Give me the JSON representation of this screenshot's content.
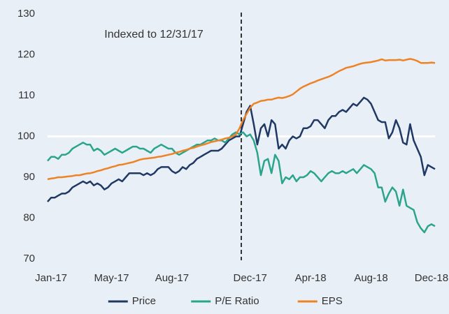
{
  "chart_data": {
    "type": "line",
    "annotation": "Indexed to 12/31/17",
    "categories": [
      null,
      "Jan-17",
      null,
      null,
      null,
      null,
      null,
      null,
      null,
      null,
      null,
      null,
      null,
      null,
      null,
      null,
      null,
      null,
      "May-17",
      null,
      null,
      null,
      null,
      null,
      null,
      null,
      null,
      null,
      null,
      null,
      null,
      null,
      null,
      null,
      null,
      "Aug-17",
      null,
      null,
      null,
      null,
      null,
      null,
      null,
      null,
      null,
      null,
      null,
      null,
      null,
      null,
      null,
      null,
      null,
      null,
      null,
      null,
      null,
      "Dec-17",
      null,
      null,
      null,
      null,
      null,
      null,
      null,
      null,
      null,
      null,
      null,
      null,
      null,
      null,
      null,
      null,
      "Apr-18",
      null,
      null,
      null,
      null,
      null,
      null,
      null,
      null,
      null,
      null,
      null,
      null,
      null,
      null,
      null,
      null,
      "Aug-18",
      null,
      null,
      null,
      null,
      null,
      null,
      null,
      null,
      null,
      null,
      null,
      null,
      null,
      null,
      null,
      null,
      "Dec-18",
      null
    ],
    "series": [
      {
        "name": "Price",
        "color": "#1f3864",
        "values": [
          84,
          85,
          85,
          85.5,
          86,
          86,
          86.5,
          87.5,
          88,
          88.5,
          89,
          88.5,
          89,
          88,
          88.5,
          88,
          87,
          87.5,
          88.5,
          89,
          89.5,
          89,
          90,
          91,
          91,
          91,
          91,
          90.5,
          91,
          90.5,
          91,
          92,
          92.5,
          92.5,
          92.5,
          91.5,
          91,
          91.5,
          92.5,
          92,
          93,
          93.5,
          94.5,
          95,
          95.5,
          96,
          96.5,
          96.5,
          96.5,
          97,
          98,
          99,
          99.5,
          100,
          100,
          103,
          106,
          107.5,
          103,
          98,
          102,
          103,
          100,
          104,
          103,
          97,
          98,
          97,
          99,
          100,
          99.5,
          100,
          102,
          102,
          102.5,
          104,
          104,
          103,
          102,
          104,
          105,
          105,
          106,
          106.5,
          106,
          107,
          108,
          107.5,
          108.5,
          109.5,
          109,
          108,
          106,
          104,
          103.5,
          103.5,
          99.5,
          101,
          104,
          102,
          98.5,
          98,
          103,
          99,
          97,
          95,
          90.5,
          93,
          92.5,
          92
        ]
      },
      {
        "name": "P/E Ratio",
        "color": "#2aa58c",
        "values": [
          94,
          95,
          95,
          94.5,
          95.5,
          95.5,
          96,
          97,
          97.5,
          98,
          98.5,
          98,
          98,
          96.5,
          97,
          96.5,
          95.5,
          96,
          96.5,
          97,
          96.5,
          96,
          96.5,
          97,
          97.5,
          97.5,
          97,
          97,
          96.5,
          96,
          97,
          97.5,
          98,
          97.5,
          97,
          97,
          96,
          95.5,
          96,
          96.5,
          97,
          97.5,
          98,
          98,
          98.5,
          99,
          99,
          99.5,
          99,
          99,
          98.5,
          99.5,
          100.5,
          101,
          100.5,
          101,
          100,
          100.5,
          99,
          96,
          90.5,
          94,
          94.5,
          91,
          95.5,
          94,
          88.5,
          90,
          89.5,
          90.5,
          89,
          90,
          90,
          90.5,
          91.5,
          91,
          90,
          89,
          90,
          91,
          91.5,
          91,
          91,
          91.5,
          91,
          91.5,
          92,
          91,
          92,
          93,
          92.5,
          92,
          91,
          87.5,
          87.5,
          84,
          86,
          87.5,
          86.5,
          83,
          87,
          83,
          82.5,
          82,
          79,
          77.5,
          76.5,
          78,
          78.5,
          78
        ]
      },
      {
        "name": "EPS",
        "color": "#ee8326",
        "values": [
          89.5,
          89.7,
          89.8,
          90,
          90,
          90.1,
          90.2,
          90.3,
          90.5,
          90.5,
          90.7,
          90.9,
          91,
          91.2,
          91.5,
          91.7,
          92,
          92.2,
          92.5,
          92.7,
          93,
          93.1,
          93.3,
          93.5,
          93.7,
          94,
          94.3,
          94.5,
          94.6,
          94.7,
          94.8,
          95,
          95.1,
          95.3,
          95.5,
          95.7,
          96,
          96.2,
          96.5,
          96.7,
          97,
          97.2,
          97.5,
          97.8,
          98,
          98.3,
          98.6,
          98.8,
          99,
          99.2,
          99.5,
          99.7,
          100,
          100.5,
          102,
          104,
          105.5,
          107,
          108,
          108.3,
          108.7,
          108.8,
          109,
          109,
          109.3,
          109.5,
          109.4,
          109.6,
          109.9,
          110.3,
          111,
          111.7,
          112.2,
          112.6,
          113,
          113.3,
          113.7,
          114,
          114.3,
          114.6,
          115,
          115.5,
          116,
          116.4,
          116.8,
          117,
          117.2,
          117.5,
          117.8,
          118,
          118.1,
          118.2,
          118.4,
          118.6,
          118.9,
          118.6,
          118.7,
          118.7,
          118.7,
          118.8,
          118.6,
          118.8,
          119,
          118.8,
          118.5,
          118,
          118,
          118,
          118.1,
          118
        ]
      }
    ],
    "ylim": [
      70,
      130
    ],
    "yticks": [
      70,
      80,
      90,
      100,
      110,
      120,
      130
    ],
    "axis_cross": 100,
    "legend": "bottom"
  }
}
